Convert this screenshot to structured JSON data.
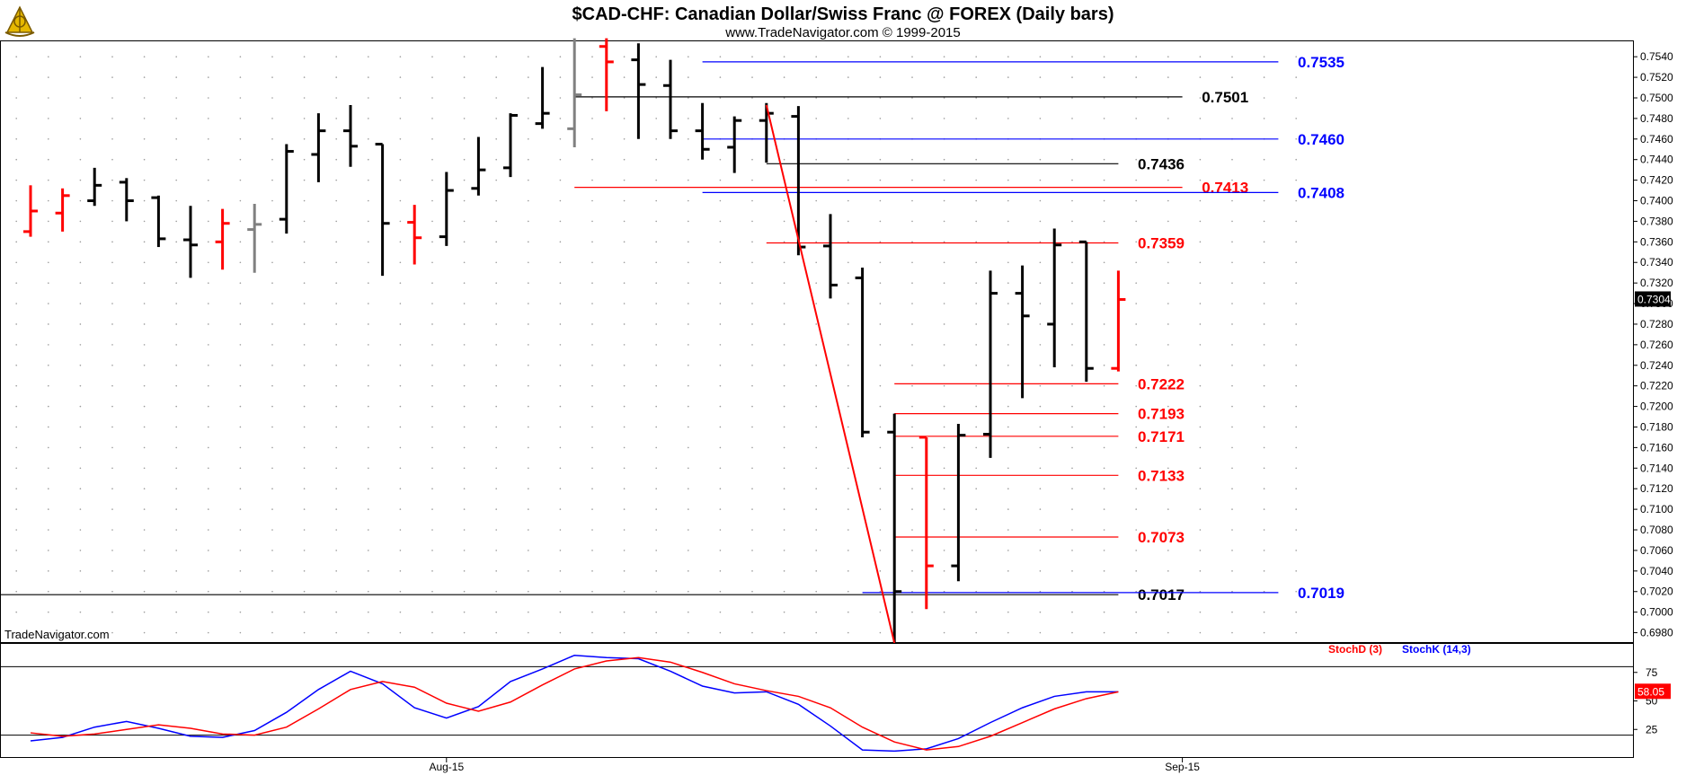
{
  "header": {
    "title": "$CAD-CHF:  Canadian Dollar/Swiss Franc @ FOREX  (Daily bars)",
    "subtitle": "www.TradeNavigator.com © 1999-2015",
    "logo_icon": "sextant-logo-icon"
  },
  "watermark": "TradeNavigator.com",
  "colors": {
    "up_bar": "#000000",
    "down_bar": "#ff0000",
    "neutral_bar": "#808080",
    "fib_red": "#ff0000",
    "fib_blue": "#0000ff",
    "level_black": "#000000",
    "background": "#ffffff"
  },
  "chart_data": [
    {
      "type": "ohlc",
      "panel": "price",
      "ylim": [
        0.697,
        0.7555
      ],
      "y_ticks": [
        "0.7540",
        "0.7520",
        "0.7500",
        "0.7480",
        "0.7460",
        "0.7440",
        "0.7420",
        "0.7400",
        "0.7380",
        "0.7360",
        "0.7340",
        "0.7320",
        "0.7300",
        "0.7280",
        "0.7260",
        "0.7240",
        "0.7220",
        "0.7200",
        "0.7180",
        "0.7160",
        "0.7140",
        "0.7120",
        "0.7100",
        "0.7080",
        "0.7060",
        "0.7040",
        "0.7020",
        "0.7000",
        "0.6980"
      ],
      "x_date_labels": [
        {
          "label": "Aug-15",
          "bar_index": 13
        },
        {
          "label": "Sep-15",
          "bar_index": 36
        }
      ],
      "last_price": "0.7304",
      "bars": [
        {
          "i": 0,
          "o": 0.737,
          "h": 0.7415,
          "l": 0.7365,
          "c": 0.739,
          "color": "red"
        },
        {
          "i": 1,
          "o": 0.7388,
          "h": 0.7412,
          "l": 0.737,
          "c": 0.7405,
          "color": "red"
        },
        {
          "i": 2,
          "o": 0.74,
          "h": 0.7432,
          "l": 0.7395,
          "c": 0.7415,
          "color": "black"
        },
        {
          "i": 3,
          "o": 0.7418,
          "h": 0.7422,
          "l": 0.738,
          "c": 0.74,
          "color": "black"
        },
        {
          "i": 4,
          "o": 0.7403,
          "h": 0.7405,
          "l": 0.7355,
          "c": 0.7363,
          "color": "black"
        },
        {
          "i": 5,
          "o": 0.7362,
          "h": 0.7395,
          "l": 0.7325,
          "c": 0.7357,
          "color": "black"
        },
        {
          "i": 6,
          "o": 0.736,
          "h": 0.7392,
          "l": 0.7333,
          "c": 0.7378,
          "color": "red"
        },
        {
          "i": 7,
          "o": 0.7372,
          "h": 0.7397,
          "l": 0.733,
          "c": 0.7377,
          "color": "gray"
        },
        {
          "i": 8,
          "o": 0.7382,
          "h": 0.7455,
          "l": 0.7368,
          "c": 0.7448,
          "color": "black"
        },
        {
          "i": 9,
          "o": 0.7445,
          "h": 0.7485,
          "l": 0.7418,
          "c": 0.7468,
          "color": "black"
        },
        {
          "i": 10,
          "o": 0.7468,
          "h": 0.7493,
          "l": 0.7433,
          "c": 0.7453,
          "color": "black"
        },
        {
          "i": 11,
          "o": 0.7455,
          "h": 0.7455,
          "l": 0.7327,
          "c": 0.7378,
          "color": "black"
        },
        {
          "i": 12,
          "o": 0.7379,
          "h": 0.7396,
          "l": 0.7338,
          "c": 0.7364,
          "color": "red"
        },
        {
          "i": 13,
          "o": 0.7365,
          "h": 0.7428,
          "l": 0.7356,
          "c": 0.741,
          "color": "black"
        },
        {
          "i": 14,
          "o": 0.7412,
          "h": 0.7462,
          "l": 0.7405,
          "c": 0.743,
          "color": "black"
        },
        {
          "i": 15,
          "o": 0.7432,
          "h": 0.7485,
          "l": 0.7423,
          "c": 0.7483,
          "color": "black"
        },
        {
          "i": 16,
          "o": 0.7475,
          "h": 0.753,
          "l": 0.747,
          "c": 0.7485,
          "color": "black"
        },
        {
          "i": 17,
          "o": 0.747,
          "h": 0.7558,
          "l": 0.7452,
          "c": 0.7503,
          "color": "gray"
        },
        {
          "i": 18,
          "o": 0.755,
          "h": 0.7558,
          "l": 0.7487,
          "c": 0.7535,
          "color": "red"
        },
        {
          "i": 19,
          "o": 0.7537,
          "h": 0.7553,
          "l": 0.746,
          "c": 0.7513,
          "color": "black"
        },
        {
          "i": 20,
          "o": 0.7512,
          "h": 0.7537,
          "l": 0.746,
          "c": 0.7468,
          "color": "black"
        },
        {
          "i": 21,
          "o": 0.7468,
          "h": 0.7495,
          "l": 0.744,
          "c": 0.745,
          "color": "black"
        },
        {
          "i": 22,
          "o": 0.7452,
          "h": 0.7482,
          "l": 0.7427,
          "c": 0.7478,
          "color": "black"
        },
        {
          "i": 23,
          "o": 0.7478,
          "h": 0.7495,
          "l": 0.7437,
          "c": 0.7485,
          "color": "black"
        },
        {
          "i": 24,
          "o": 0.7482,
          "h": 0.7492,
          "l": 0.7347,
          "c": 0.7355,
          "color": "black"
        },
        {
          "i": 25,
          "o": 0.7356,
          "h": 0.7387,
          "l": 0.7305,
          "c": 0.7318,
          "color": "black"
        },
        {
          "i": 26,
          "o": 0.7325,
          "h": 0.7335,
          "l": 0.717,
          "c": 0.7175,
          "color": "black"
        },
        {
          "i": 27,
          "o": 0.7175,
          "h": 0.7193,
          "l": 0.697,
          "c": 0.702,
          "color": "black"
        },
        {
          "i": 28,
          "o": 0.717,
          "h": 0.717,
          "l": 0.7003,
          "c": 0.7045,
          "color": "red"
        },
        {
          "i": 29,
          "o": 0.7045,
          "h": 0.7183,
          "l": 0.703,
          "c": 0.7172,
          "color": "black"
        },
        {
          "i": 30,
          "o": 0.7173,
          "h": 0.7332,
          "l": 0.715,
          "c": 0.731,
          "color": "black"
        },
        {
          "i": 31,
          "o": 0.731,
          "h": 0.7337,
          "l": 0.7208,
          "c": 0.7288,
          "color": "black"
        },
        {
          "i": 32,
          "o": 0.728,
          "h": 0.7373,
          "l": 0.7238,
          "c": 0.7357,
          "color": "black"
        },
        {
          "i": 33,
          "o": 0.736,
          "h": 0.736,
          "l": 0.7224,
          "c": 0.7237,
          "color": "black"
        },
        {
          "i": 34,
          "o": 0.7237,
          "h": 0.7332,
          "l": 0.7234,
          "c": 0.7304,
          "color": "red"
        }
      ],
      "levels": [
        {
          "value": "0.7535",
          "color": "blue",
          "from_bar": 21,
          "to_bar": 39,
          "label_bar": 40
        },
        {
          "value": "0.7501",
          "color": "black",
          "from_bar": 17,
          "to_bar": 36,
          "label_bar": 37
        },
        {
          "value": "0.7460",
          "color": "blue",
          "from_bar": 21,
          "to_bar": 39,
          "label_bar": 40
        },
        {
          "value": "0.7436",
          "color": "black",
          "from_bar": 23,
          "to_bar": 34,
          "label_bar": 35
        },
        {
          "value": "0.7413",
          "color": "red",
          "from_bar": 17,
          "to_bar": 36,
          "label_bar": 37
        },
        {
          "value": "0.7408",
          "color": "blue",
          "from_bar": 21,
          "to_bar": 39,
          "label_bar": 40
        },
        {
          "value": "0.7359",
          "color": "red",
          "from_bar": 23,
          "to_bar": 34,
          "label_bar": 35
        },
        {
          "value": "0.7222",
          "color": "red",
          "from_bar": 27,
          "to_bar": 34,
          "label_bar": 35
        },
        {
          "value": "0.7193",
          "color": "red",
          "from_bar": 27,
          "to_bar": 34,
          "label_bar": 35
        },
        {
          "value": "0.7171",
          "color": "red",
          "from_bar": 27,
          "to_bar": 34,
          "label_bar": 35
        },
        {
          "value": "0.7133",
          "color": "red",
          "from_bar": 27,
          "to_bar": 34,
          "label_bar": 35
        },
        {
          "value": "0.7073",
          "color": "red",
          "from_bar": 27,
          "to_bar": 34,
          "label_bar": 35
        },
        {
          "value": "0.7017",
          "color": "black",
          "from_bar": -1,
          "to_bar": 34,
          "label_bar": 35
        },
        {
          "value": "0.7019",
          "color": "blue",
          "from_bar": 26,
          "to_bar": 39,
          "label_bar": 40
        }
      ],
      "trendline": {
        "from": {
          "bar": 23,
          "value": 0.7493
        },
        "to": {
          "bar": 27,
          "value": 0.697
        },
        "color": "red"
      }
    },
    {
      "type": "line",
      "panel": "stochastic",
      "ylim": [
        0,
        100
      ],
      "y_ticks": [
        "75",
        "50",
        "25"
      ],
      "ref_lines": [
        80,
        20
      ],
      "legend": [
        {
          "label": "StochD (3)",
          "color": "red"
        },
        {
          "label": "StochK (14,3)",
          "color": "blue"
        }
      ],
      "last_value": "58.05",
      "series": [
        {
          "name": "StochK (14,3)",
          "color": "blue",
          "values": [
            15,
            18,
            27,
            32,
            26,
            19,
            18,
            24,
            40,
            60,
            76,
            65,
            44,
            35,
            45,
            67,
            78,
            90,
            88,
            87,
            76,
            63,
            57,
            58,
            47,
            28,
            7,
            6,
            8,
            17,
            31,
            44,
            54,
            58,
            58
          ]
        },
        {
          "name": "StochD (3)",
          "color": "red",
          "values": [
            22,
            19,
            21,
            25,
            29,
            26,
            21,
            20,
            27,
            43,
            60,
            67,
            62,
            48,
            41,
            49,
            64,
            78,
            85,
            88,
            84,
            75,
            65,
            59,
            54,
            44,
            27,
            14,
            7,
            10,
            19,
            31,
            43,
            52,
            58
          ]
        }
      ]
    }
  ]
}
